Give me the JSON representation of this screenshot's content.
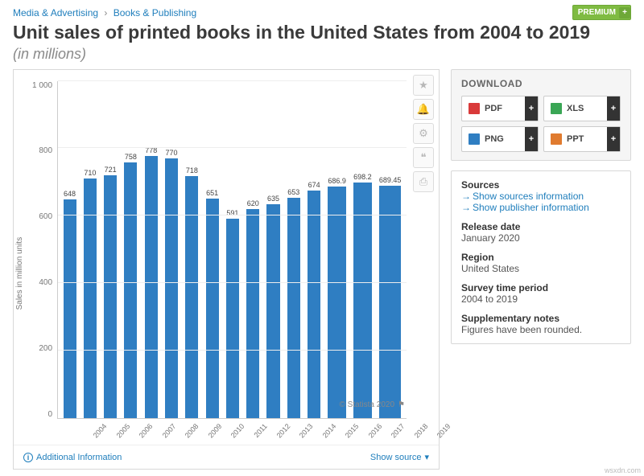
{
  "breadcrumbs": {
    "item1": "Media & Advertising",
    "item2": "Books & Publishing",
    "sep": "›"
  },
  "premium_label": "PREMIUM",
  "title": "Unit sales of printed books in the United States from 2004 to 2019",
  "subtitle": "(in millions)",
  "chart": {
    "type": "bar",
    "ylabel": "Sales in million units",
    "ylim": [
      0,
      1000
    ],
    "ytick_step": 200,
    "yticks": [
      "0",
      "200",
      "400",
      "600",
      "800",
      "1 000"
    ],
    "bar_color": "#2f7ec2",
    "grid_color": "#eeeeee",
    "background_color": "#ffffff",
    "categories": [
      "2004",
      "2005",
      "2006",
      "2007",
      "2008",
      "2009",
      "2010",
      "2011",
      "2012",
      "2013",
      "2014",
      "2015",
      "2016",
      "2017",
      "2018",
      "2019"
    ],
    "values": [
      648,
      710,
      721,
      758,
      778,
      770,
      718,
      651,
      591,
      620,
      635,
      653,
      674,
      686.9,
      698.2,
      689.45
    ],
    "value_labels": [
      "648",
      "710",
      "721",
      "758",
      "778",
      "770",
      "718",
      "651",
      "591",
      "620",
      "635",
      "653",
      "674",
      "686.9",
      "698.2",
      "689.45"
    ]
  },
  "attribution": "© Statista 2020",
  "footer": {
    "addl": "Additional Information",
    "source": "Show source"
  },
  "download": {
    "heading": "DOWNLOAD",
    "buttons": [
      {
        "label": "PDF",
        "color": "#d93a3a"
      },
      {
        "label": "XLS",
        "color": "#3aa655"
      },
      {
        "label": "PNG",
        "color": "#2f7ec2"
      },
      {
        "label": "PPT",
        "color": "#e07b2f"
      }
    ]
  },
  "info": {
    "sources_label": "Sources",
    "sources_link1": "Show sources information",
    "sources_link2": "Show publisher information",
    "release_label": "Release date",
    "release_val": "January 2020",
    "region_label": "Region",
    "region_val": "United States",
    "period_label": "Survey time period",
    "period_val": "2004 to 2019",
    "notes_label": "Supplementary notes",
    "notes_val": "Figures have been rounded."
  },
  "watermark": "wsxdn.com"
}
